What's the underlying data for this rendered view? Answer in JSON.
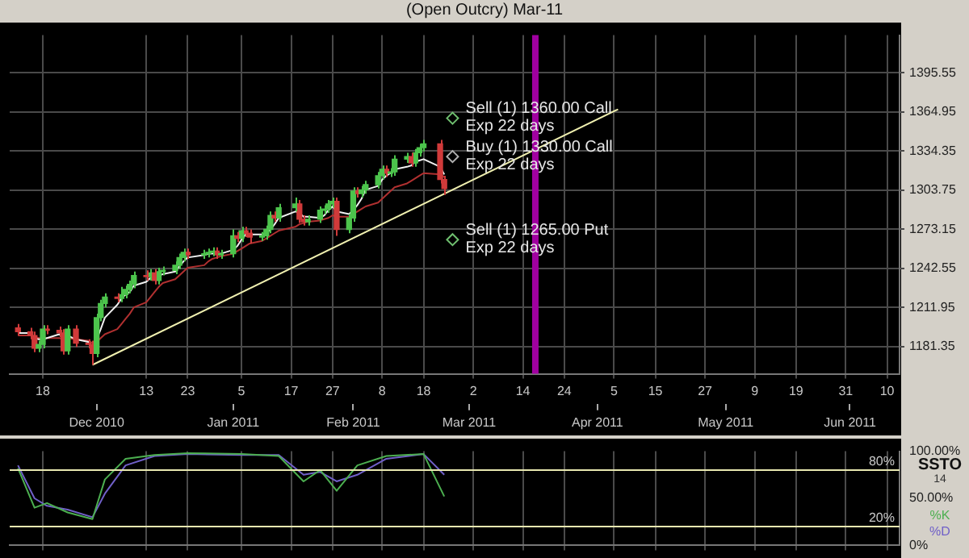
{
  "chart_data": [
    {
      "type": "candlestick",
      "title": "(Open Outcry) Mar-11",
      "x": [
        "2010-11-12",
        "2010-11-15",
        "2010-11-16",
        "2010-11-17",
        "2010-11-18",
        "2010-11-19",
        "2010-11-22",
        "2010-11-23",
        "2010-11-24",
        "2010-11-26",
        "2010-11-29",
        "2010-11-30",
        "2010-12-01",
        "2010-12-02",
        "2010-12-03",
        "2010-12-06",
        "2010-12-07",
        "2010-12-08",
        "2010-12-09",
        "2010-12-10",
        "2010-12-13",
        "2010-12-14",
        "2010-12-15",
        "2010-12-16",
        "2010-12-17",
        "2010-12-20",
        "2010-12-21",
        "2010-12-22",
        "2010-12-23",
        "2010-12-27",
        "2010-12-28",
        "2010-12-29",
        "2010-12-30",
        "2010-12-31",
        "2011-01-03",
        "2011-01-04",
        "2011-01-05",
        "2011-01-06",
        "2011-01-07",
        "2011-01-10",
        "2011-01-11",
        "2011-01-12",
        "2011-01-13",
        "2011-01-14",
        "2011-01-18",
        "2011-01-19",
        "2011-01-20",
        "2011-01-21",
        "2011-01-24",
        "2011-01-25",
        "2011-01-26",
        "2011-01-27",
        "2011-01-28",
        "2011-01-31",
        "2011-02-01",
        "2011-02-02",
        "2011-02-03",
        "2011-02-04",
        "2011-02-07",
        "2011-02-08",
        "2011-02-09",
        "2011-02-10",
        "2011-02-11",
        "2011-02-14",
        "2011-02-15",
        "2011-02-16",
        "2011-02-17",
        "2011-02-18",
        "2011-02-22",
        "2011-02-23"
      ],
      "ohlc": [
        [
          1196,
          1199,
          1190,
          1193
        ],
        [
          1193,
          1196,
          1187,
          1190
        ],
        [
          1190,
          1193,
          1177,
          1180
        ],
        [
          1180,
          1186,
          1177,
          1183
        ],
        [
          1183,
          1198,
          1180,
          1195
        ],
        [
          1195,
          1198,
          1191,
          1194
        ],
        [
          1194,
          1197,
          1189,
          1192
        ],
        [
          1192,
          1195,
          1175,
          1178
        ],
        [
          1178,
          1198,
          1175,
          1195
        ],
        [
          1195,
          1198,
          1181,
          1184
        ],
        [
          1184,
          1187,
          1180,
          1183
        ],
        [
          1183,
          1186,
          1167,
          1176
        ],
        [
          1176,
          1207,
          1173,
          1204
        ],
        [
          1204,
          1218,
          1201,
          1215
        ],
        [
          1215,
          1223,
          1212,
          1220
        ],
        [
          1220,
          1223,
          1216,
          1219
        ],
        [
          1219,
          1228,
          1216,
          1222
        ],
        [
          1222,
          1229,
          1219,
          1226
        ],
        [
          1226,
          1233,
          1223,
          1230
        ],
        [
          1230,
          1240,
          1227,
          1237
        ],
        [
          1237,
          1241,
          1233,
          1236
        ],
        [
          1236,
          1242,
          1233,
          1239
        ],
        [
          1239,
          1242,
          1230,
          1233
        ],
        [
          1233,
          1243,
          1230,
          1240
        ],
        [
          1240,
          1244,
          1237,
          1241
        ],
        [
          1241,
          1248,
          1238,
          1245
        ],
        [
          1245,
          1254,
          1242,
          1251
        ],
        [
          1251,
          1258,
          1248,
          1255
        ],
        [
          1255,
          1258,
          1250,
          1253
        ],
        [
          1253,
          1257,
          1250,
          1254
        ],
        [
          1254,
          1258,
          1251,
          1255
        ],
        [
          1255,
          1259,
          1252,
          1256
        ],
        [
          1256,
          1259,
          1250,
          1253
        ],
        [
          1253,
          1257,
          1250,
          1254
        ],
        [
          1254,
          1273,
          1251,
          1268
        ],
        [
          1268,
          1271,
          1263,
          1266
        ],
        [
          1266,
          1275,
          1263,
          1272
        ],
        [
          1272,
          1275,
          1267,
          1270
        ],
        [
          1270,
          1273,
          1262,
          1267
        ],
        [
          1267,
          1271,
          1264,
          1268
        ],
        [
          1268,
          1276,
          1265,
          1273
        ],
        [
          1273,
          1287,
          1270,
          1284
        ],
        [
          1284,
          1287,
          1279,
          1282
        ],
        [
          1282,
          1293,
          1279,
          1290
        ],
        [
          1290,
          1298,
          1287,
          1293
        ],
        [
          1293,
          1296,
          1278,
          1281
        ],
        [
          1281,
          1284,
          1276,
          1279
        ],
        [
          1279,
          1284,
          1276,
          1281
        ],
        [
          1281,
          1291,
          1278,
          1288
        ],
        [
          1288,
          1292,
          1285,
          1289
        ],
        [
          1289,
          1296,
          1286,
          1293
        ],
        [
          1293,
          1298,
          1290,
          1295
        ],
        [
          1295,
          1298,
          1268,
          1273
        ],
        [
          1273,
          1285,
          1270,
          1282
        ],
        [
          1282,
          1306,
          1279,
          1303
        ],
        [
          1303,
          1306,
          1298,
          1301
        ],
        [
          1301,
          1307,
          1298,
          1304
        ],
        [
          1304,
          1311,
          1301,
          1308
        ],
        [
          1308,
          1318,
          1305,
          1315
        ],
        [
          1315,
          1323,
          1312,
          1320
        ],
        [
          1320,
          1323,
          1314,
          1317
        ],
        [
          1317,
          1321,
          1314,
          1318
        ],
        [
          1318,
          1331,
          1315,
          1328
        ],
        [
          1328,
          1333,
          1325,
          1330
        ],
        [
          1330,
          1333,
          1322,
          1325
        ],
        [
          1325,
          1336,
          1322,
          1333
        ],
        [
          1333,
          1340,
          1330,
          1337
        ],
        [
          1337,
          1343,
          1334,
          1340
        ],
        [
          1340,
          1343,
          1309,
          1312
        ],
        [
          1312,
          1315,
          1300,
          1305
        ]
      ],
      "colors": [
        "#d03a3a",
        "#d03a3a",
        "#d03a3a",
        "#4cc44c",
        "#4cc44c",
        "#d03a3a",
        "#d03a3a",
        "#d03a3a",
        "#4cc44c",
        "#d03a3a",
        "#d03a3a",
        "#d03a3a",
        "#4cc44c",
        "#4cc44c",
        "#4cc44c",
        "#d03a3a",
        "#4cc44c",
        "#4cc44c",
        "#4cc44c",
        "#4cc44c",
        "#d03a3a",
        "#4cc44c",
        "#d03a3a",
        "#4cc44c",
        "#4cc44c",
        "#4cc44c",
        "#4cc44c",
        "#4cc44c",
        "#d03a3a",
        "#4cc44c",
        "#4cc44c",
        "#4cc44c",
        "#d03a3a",
        "#4cc44c",
        "#4cc44c",
        "#d03a3a",
        "#4cc44c",
        "#d03a3a",
        "#d03a3a",
        "#4cc44c",
        "#4cc44c",
        "#4cc44c",
        "#d03a3a",
        "#4cc44c",
        "#4cc44c",
        "#d03a3a",
        "#d03a3a",
        "#4cc44c",
        "#4cc44c",
        "#4cc44c",
        "#4cc44c",
        "#4cc44c",
        "#d03a3a",
        "#4cc44c",
        "#4cc44c",
        "#d03a3a",
        "#4cc44c",
        "#4cc44c",
        "#4cc44c",
        "#4cc44c",
        "#d03a3a",
        "#4cc44c",
        "#4cc44c",
        "#4cc44c",
        "#d03a3a",
        "#4cc44c",
        "#4cc44c",
        "#4cc44c",
        "#d03a3a",
        "#d03a3a"
      ],
      "series": [
        {
          "type": "line",
          "color": "#f0f0f0",
          "values": [
            1192,
            1192,
            1188,
            1187,
            1187,
            1188,
            1191,
            1187,
            1190,
            1187,
            1185,
            1180,
            1187,
            1195,
            1204,
            1214,
            1219,
            1222,
            1224,
            1229,
            1232,
            1235,
            1236,
            1237,
            1238,
            1240,
            1244,
            1248,
            1251,
            1253,
            1254,
            1254,
            1254,
            1254,
            1257,
            1260,
            1265,
            1269,
            1269,
            1269,
            1270,
            1273,
            1277,
            1282,
            1287,
            1286,
            1283,
            1283,
            1282,
            1284,
            1288,
            1291,
            1287,
            1285,
            1288,
            1292,
            1297,
            1304,
            1307,
            1312,
            1315,
            1317,
            1320,
            1322,
            1323,
            1326,
            1327,
            1328,
            1322,
            1316
          ]
        },
        {
          "type": "line",
          "color": "#b03030",
          "values": [
            1190,
            1190,
            1189,
            1188,
            1188,
            1188,
            1188,
            1187,
            1188,
            1187,
            1186,
            1184,
            1185,
            1188,
            1191,
            1195,
            1199,
            1203,
            1207,
            1212,
            1216,
            1220,
            1224,
            1228,
            1231,
            1234,
            1237,
            1240,
            1243,
            1245,
            1248,
            1250,
            1251,
            1252,
            1254,
            1256,
            1258,
            1260,
            1262,
            1264,
            1266,
            1268,
            1270,
            1272,
            1275,
            1277,
            1278,
            1279,
            1280,
            1281,
            1282,
            1284,
            1283,
            1283,
            1285,
            1287,
            1289,
            1291,
            1294,
            1297,
            1300,
            1303,
            1306,
            1309,
            1311,
            1313,
            1315,
            1317,
            1316,
            1314
          ]
        },
        {
          "type": "line",
          "color": "#f0f0b0",
          "x": [
            "2010-11-30",
            "2011-04-06"
          ],
          "values": [
            1167,
            1367
          ]
        },
        {
          "type": "scatter",
          "marker": "diamond",
          "x": [
            "2011-02-25",
            "2011-02-25",
            "2011-02-25"
          ],
          "values": [
            1360,
            1330,
            1265
          ],
          "colors": [
            "#6fbf6f",
            "#b0b0b0",
            "#6fbf6f"
          ]
        }
      ],
      "annotations": [
        {
          "text": "Sell (1) 1360.00 Call\nExp 22 days",
          "x": "2011-02-25",
          "y": 1360
        },
        {
          "text": "Buy (1) 1330.00 Call\nExp 22 days",
          "x": "2011-02-25",
          "y": 1330
        },
        {
          "text": "Sell (1) 1265.00 Put\nExp 22 days",
          "x": "2011-02-25",
          "y": 1265
        }
      ],
      "ref_lines": [
        {
          "axis": "x",
          "value": "2011-03-17",
          "color": "#a000a0"
        }
      ],
      "xlim": [
        "2010-11-10",
        "2011-06-13"
      ],
      "xticks": [
        {
          "value": "2010-11-18",
          "label": "18"
        },
        {
          "value": "2010-12-13",
          "label": "13"
        },
        {
          "value": "2010-12-23",
          "label": "23"
        },
        {
          "value": "2011-01-05",
          "label": "5"
        },
        {
          "value": "2011-01-17",
          "label": "17"
        },
        {
          "value": "2011-01-27",
          "label": "27"
        },
        {
          "value": "2011-02-08",
          "label": "8"
        },
        {
          "value": "2011-02-18",
          "label": "18"
        },
        {
          "value": "2011-03-02",
          "label": "2"
        },
        {
          "value": "2011-03-14",
          "label": "14"
        },
        {
          "value": "2011-03-24",
          "label": "24"
        },
        {
          "value": "2011-04-05",
          "label": "5"
        },
        {
          "value": "2011-04-15",
          "label": "15"
        },
        {
          "value": "2011-04-27",
          "label": "27"
        },
        {
          "value": "2011-05-09",
          "label": "9"
        },
        {
          "value": "2011-05-19",
          "label": "19"
        },
        {
          "value": "2011-05-31",
          "label": "31"
        },
        {
          "value": "2011-06-10",
          "label": "10"
        }
      ],
      "x2lim": [
        "2010-11-10",
        "2011-06-13"
      ],
      "x2ticks": [
        {
          "value": "2010-12-01",
          "label": "Dec 2010"
        },
        {
          "value": "2011-01-03",
          "label": "Jan 2011"
        },
        {
          "value": "2011-02-01",
          "label": "Feb 2011"
        },
        {
          "value": "2011-03-01",
          "label": "Mar 2011"
        },
        {
          "value": "2011-04-01",
          "label": "Apr 2011"
        },
        {
          "value": "2011-05-02",
          "label": "May 2011"
        },
        {
          "value": "2011-06-01",
          "label": "Jun 2011"
        }
      ],
      "ylim": [
        1160,
        1425
      ],
      "yticks": [
        1181.35,
        1211.95,
        1242.55,
        1273.15,
        1303.75,
        1334.35,
        1364.95,
        1395.55
      ],
      "grid": true
    },
    {
      "type": "line",
      "legend": "right",
      "legend_title": "SSTO",
      "annotations": [
        "14"
      ],
      "series": [
        {
          "name": "%K",
          "color": "#4caf50",
          "x": [
            "2010-11-12",
            "2010-11-16",
            "2010-11-19",
            "2010-11-24",
            "2010-11-30",
            "2010-12-03",
            "2010-12-08",
            "2010-12-15",
            "2010-12-23",
            "2011-01-05",
            "2011-01-14",
            "2011-01-20",
            "2011-01-24",
            "2011-01-28",
            "2011-02-02",
            "2011-02-09",
            "2011-02-18",
            "2011-02-23"
          ],
          "values": [
            82,
            40,
            45,
            35,
            28,
            70,
            92,
            96,
            98,
            97,
            95,
            68,
            80,
            58,
            85,
            95,
            97,
            52
          ]
        },
        {
          "name": "%D",
          "color": "#7060c8",
          "x": [
            "2010-11-12",
            "2010-11-16",
            "2010-11-19",
            "2010-11-24",
            "2010-11-30",
            "2010-12-03",
            "2010-12-08",
            "2010-12-15",
            "2010-12-23",
            "2011-01-05",
            "2011-01-14",
            "2011-01-20",
            "2011-01-24",
            "2011-01-28",
            "2011-02-02",
            "2011-02-09",
            "2011-02-18",
            "2011-02-23"
          ],
          "values": [
            85,
            50,
            42,
            38,
            30,
            55,
            85,
            95,
            97,
            96,
            96,
            75,
            78,
            68,
            75,
            92,
            97,
            75
          ]
        }
      ],
      "ref_lines": [
        {
          "axis": "y",
          "value": 80,
          "label": "80%",
          "color": "#e8e8b0"
        },
        {
          "axis": "y",
          "value": 20,
          "label": "20%",
          "color": "#e8e8b0"
        }
      ],
      "xlim": [
        "2010-11-10",
        "2011-06-13"
      ],
      "xticks": [
        "2010-11-18",
        "2010-12-13",
        "2010-12-23",
        "2011-01-05",
        "2011-01-17",
        "2011-01-27",
        "2011-02-08",
        "2011-02-18",
        "2011-03-02",
        "2011-03-14",
        "2011-03-24",
        "2011-04-05",
        "2011-04-15",
        "2011-04-27",
        "2011-05-09",
        "2011-05-19",
        "2011-05-31",
        "2011-06-10"
      ],
      "ylim": [
        0,
        100
      ],
      "yticks": [
        {
          "value": 0,
          "label": "0%"
        },
        {
          "value": 50,
          "label": "50.00%"
        },
        {
          "value": 100,
          "label": "100.00%"
        }
      ],
      "tick_labels": "y",
      "grid": "x"
    }
  ]
}
